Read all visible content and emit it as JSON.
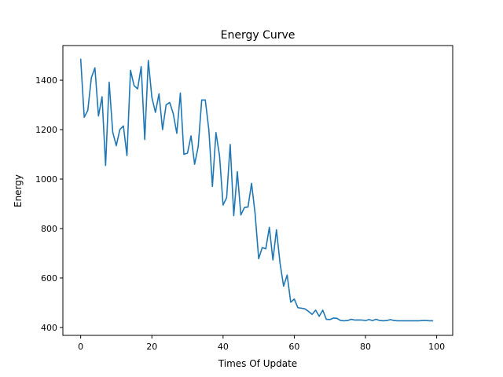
{
  "chart_data": {
    "type": "line",
    "title": "Energy Curve",
    "xlabel": "Times Of Update",
    "ylabel": "Energy",
    "xlim": [
      -5,
      104.5
    ],
    "ylim": [
      368,
      1540
    ],
    "xticks": [
      0,
      20,
      40,
      60,
      80,
      100
    ],
    "yticks": [
      400,
      600,
      800,
      1000,
      1200,
      1400
    ],
    "grid": false,
    "legend": "none",
    "series": [
      {
        "color": "#1f77b4",
        "x": [
          0,
          1,
          2,
          3,
          4,
          5,
          6,
          7,
          8,
          9,
          10,
          11,
          12,
          13,
          14,
          15,
          16,
          17,
          18,
          19,
          20,
          21,
          22,
          23,
          24,
          25,
          26,
          27,
          28,
          29,
          30,
          31,
          32,
          33,
          34,
          35,
          36,
          37,
          38,
          39,
          40,
          41,
          42,
          43,
          44,
          45,
          46,
          47,
          48,
          49,
          50,
          51,
          52,
          53,
          54,
          55,
          56,
          57,
          58,
          59,
          60,
          61,
          62,
          63,
          64,
          65,
          66,
          67,
          68,
          69,
          70,
          71,
          72,
          73,
          74,
          75,
          76,
          77,
          78,
          79,
          80,
          81,
          82,
          83,
          84,
          85,
          86,
          87,
          88,
          89,
          90,
          91,
          92,
          93,
          94,
          95,
          96,
          97,
          98,
          99
        ],
        "values": [
          1487,
          1250,
          1278,
          1410,
          1450,
          1255,
          1333,
          1055,
          1392,
          1190,
          1135,
          1200,
          1215,
          1095,
          1440,
          1378,
          1365,
          1455,
          1160,
          1480,
          1330,
          1270,
          1345,
          1200,
          1300,
          1310,
          1265,
          1185,
          1348,
          1100,
          1105,
          1175,
          1060,
          1130,
          1320,
          1320,
          1200,
          970,
          1188,
          1095,
          895,
          925,
          1140,
          852,
          1030,
          855,
          885,
          887,
          983,
          860,
          678,
          723,
          718,
          805,
          673,
          795,
          660,
          567,
          612,
          502,
          515,
          480,
          478,
          475,
          465,
          453,
          470,
          445,
          470,
          433,
          432,
          438,
          437,
          428,
          427,
          428,
          433,
          430,
          430,
          430,
          428,
          432,
          428,
          433,
          428,
          427,
          428,
          432,
          428,
          427,
          427,
          427,
          427,
          427,
          427,
          427,
          428,
          428,
          427,
          427
        ]
      }
    ]
  }
}
